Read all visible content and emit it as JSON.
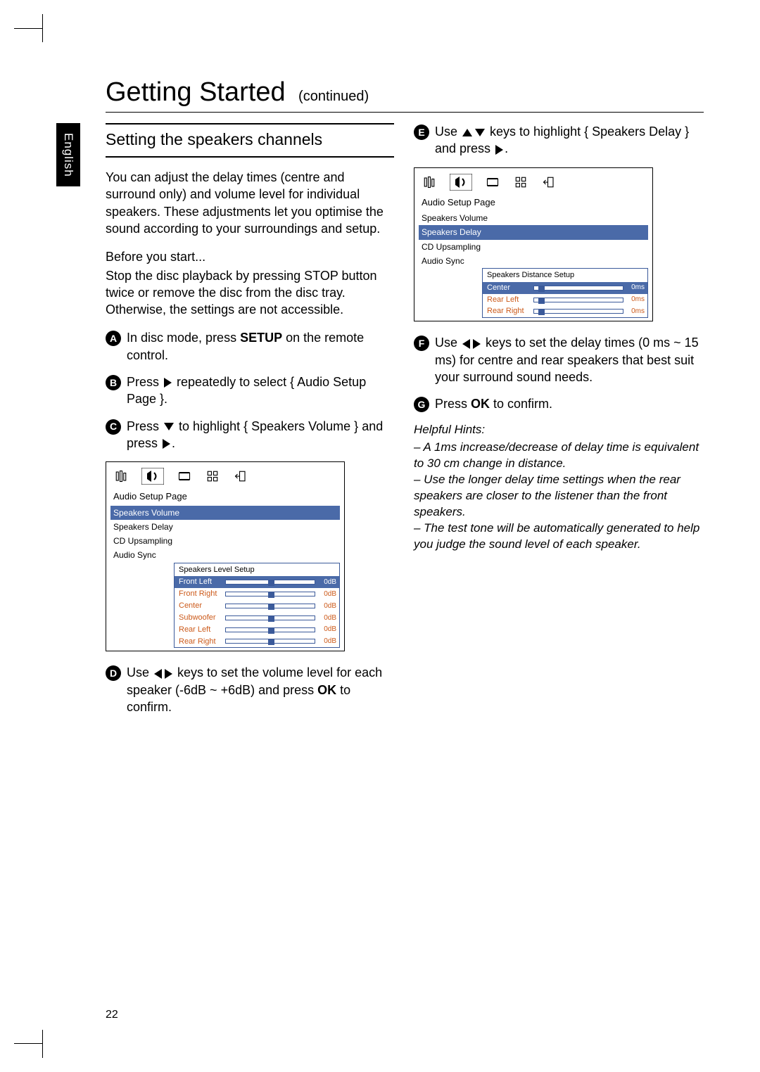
{
  "language_tab": "English",
  "title": {
    "main": "Getting Started",
    "sub": "(continued)"
  },
  "section_heading": "Setting the speakers channels",
  "intro": "You can adjust the delay times (centre and surround only) and volume level for individual speakers. These adjustments let you optimise the sound according to your surroundings and setup.",
  "before_label": "Before you start...",
  "before_text": "Stop the disc playback by pressing STOP button twice or remove the disc from the disc tray. Otherwise, the settings are not accessible.",
  "steps": {
    "s1a": "In disc mode, press ",
    "s1b": "SETUP",
    "s1c": " on the remote control.",
    "s2a": "Press ",
    "s2b": " repeatedly to select { Audio Setup Page }.",
    "s3a": "Press ",
    "s3b": " to highlight { Speakers Volume } and press ",
    "s3c": ".",
    "s4a": "Use ",
    "s4b": " keys to set the volume level for each speaker (-6dB ~ +6dB) and press ",
    "s4c": "OK",
    "s4d": " to confirm.",
    "s5a": "Use ",
    "s5b": " keys to highlight { Speakers Delay } and press ",
    "s5c": ".",
    "s6": "Use ",
    "s6b": " keys to set the delay times (0 ms ~ 15 ms) for centre and rear speakers that best suit your surround sound needs.",
    "s7a": "Press ",
    "s7b": "OK",
    "s7c": " to confirm."
  },
  "osd1": {
    "title": "Audio Setup Page",
    "items": [
      "Speakers Volume",
      "Speakers Delay",
      "CD Upsampling",
      "Audio Sync"
    ],
    "selected_index": 0,
    "sub_title": "Speakers Level Setup",
    "rows": [
      {
        "label": "Front Left",
        "value": "0dB",
        "pos": 0.48,
        "sel": true
      },
      {
        "label": "Front Right",
        "value": "0dB",
        "pos": 0.48
      },
      {
        "label": "Center",
        "value": "0dB",
        "pos": 0.48
      },
      {
        "label": "Subwoofer",
        "value": "0dB",
        "pos": 0.48
      },
      {
        "label": "Rear Left",
        "value": "0dB",
        "pos": 0.48
      },
      {
        "label": "Rear Right",
        "value": "0dB",
        "pos": 0.48
      }
    ]
  },
  "osd2": {
    "title": "Audio Setup Page",
    "items": [
      "Speakers Volume",
      "Speakers Delay",
      "CD Upsampling",
      "Audio Sync"
    ],
    "selected_index": 1,
    "sub_title": "Speakers Distance Setup",
    "rows": [
      {
        "label": "Center",
        "value": "0ms",
        "pos": 0.05,
        "sel": true
      },
      {
        "label": "Rear Left",
        "value": "0ms",
        "pos": 0.05
      },
      {
        "label": "Rear Right",
        "value": "0ms",
        "pos": 0.05
      }
    ]
  },
  "hints": {
    "heading": "Helpful Hints:",
    "h1": "– A 1ms increase/decrease of delay time is equivalent to 30 cm change in distance.",
    "h2": "– Use the longer delay time settings when the rear speakers are closer to the listener than the front speakers.",
    "h3": "– The test tone will be automatically generated to help you judge the sound level of each speaker."
  },
  "page_number": "22",
  "colors": {
    "accent_blue": "#4a6aa8",
    "accent_border": "#3b5a9a",
    "accent_orange": "#cc5a1a"
  }
}
